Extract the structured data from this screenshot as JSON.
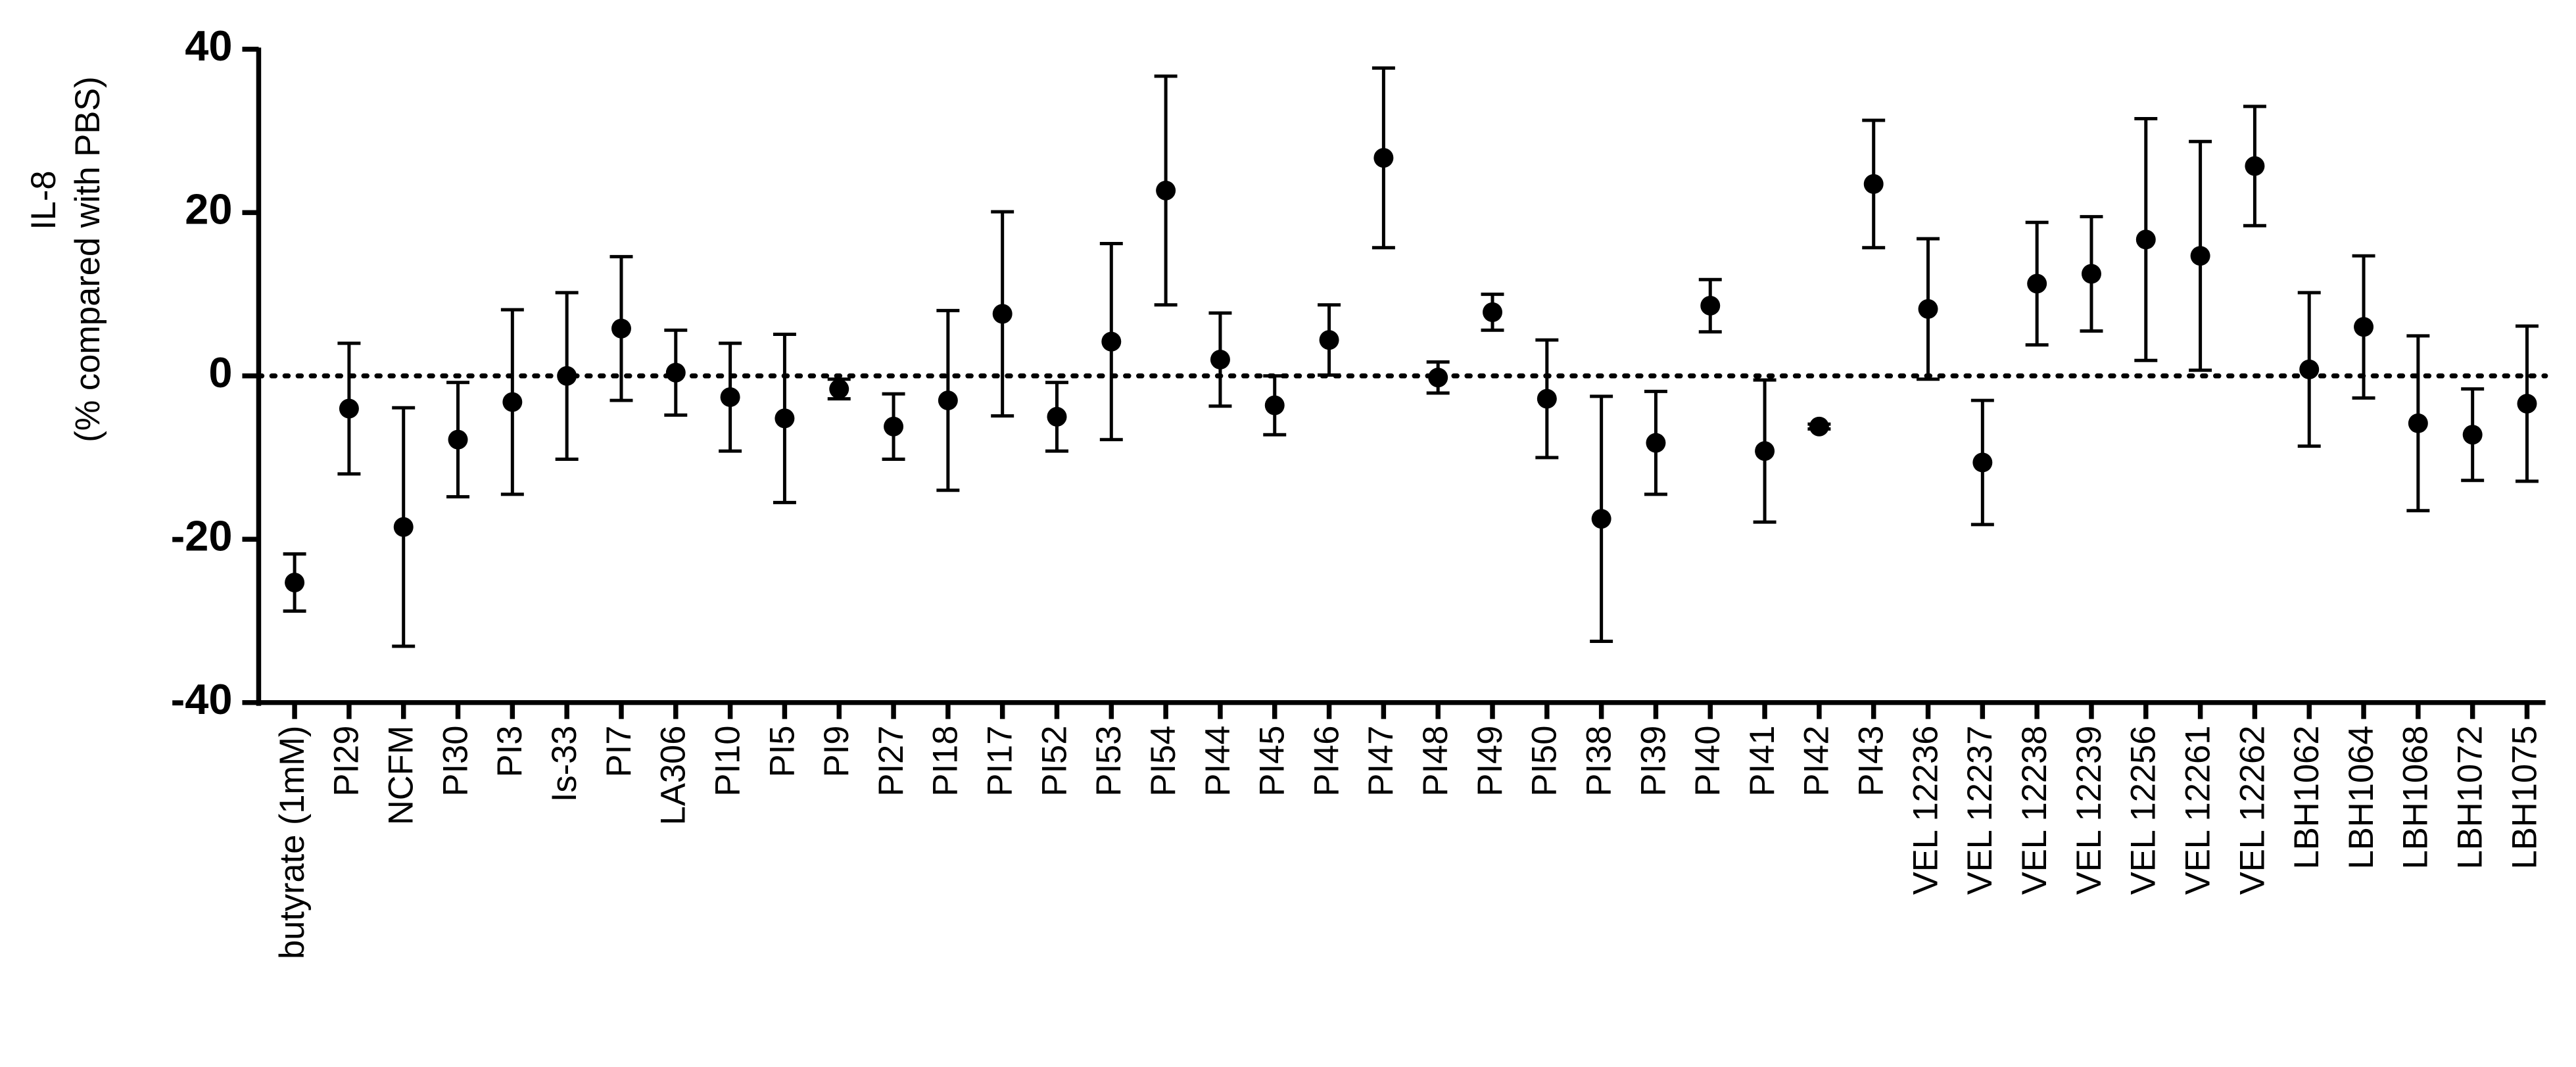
{
  "chart_data": {
    "type": "errorbar",
    "y_label": [
      "IL-8",
      "(% compared with PBS)"
    ],
    "categories": [
      "butyrate (1mM)",
      "PI29",
      "NCFM",
      "PI30",
      "PI3",
      "Is-33",
      "PI7",
      "LA306",
      "PI10",
      "PI5",
      "PI9",
      "PI27",
      "PI18",
      "PI17",
      "PI52",
      "PI53",
      "PI54",
      "PI44",
      "PI45",
      "PI46",
      "PI47",
      "PI48",
      "PI49",
      "PI50",
      "PI38",
      "PI39",
      "PI40",
      "PI41",
      "PI42",
      "PI43",
      "VEL 12236",
      "VEL 12237",
      "VEL 12238",
      "VEL 12239",
      "VEL 12256",
      "VEL 12261",
      "VEL 12262",
      "LBH1062",
      "LBH1064",
      "LBH1068",
      "LBH1072",
      "LBH1075"
    ],
    "values": [
      -25.3,
      -4,
      -18.5,
      -7.8,
      -3.2,
      0,
      5.8,
      0.4,
      -2.6,
      -5.2,
      -1.6,
      -6.2,
      -3,
      7.6,
      -5,
      4.2,
      22.7,
      2,
      -3.6,
      4.4,
      26.7,
      -0.2,
      7.8,
      -2.8,
      -17.5,
      -8.2,
      8.6,
      -9.2,
      -6.2,
      23.5,
      8.2,
      -10.6,
      11.3,
      12.5,
      16.7,
      14.7,
      25.7,
      0.8,
      6,
      -5.8,
      -7.2,
      -3.4
    ],
    "errors": [
      3.5,
      8,
      14.6,
      7,
      11.3,
      10.2,
      8.8,
      5.2,
      6.6,
      10.3,
      1.2,
      4,
      11,
      12.5,
      4.2,
      12,
      14,
      5.7,
      3.6,
      4.3,
      11,
      1.9,
      2.2,
      7.2,
      15,
      6.3,
      3.2,
      8.7,
      0.3,
      7.8,
      8.6,
      7.6,
      7.5,
      7,
      14.8,
      14,
      7.3,
      9.4,
      8.7,
      10.7,
      5.6,
      9.5
    ],
    "color": "#000000",
    "reference_line": 0,
    "ylim": [
      -40,
      40
    ],
    "yticks": [
      -40,
      -20,
      0,
      20,
      40
    ]
  }
}
